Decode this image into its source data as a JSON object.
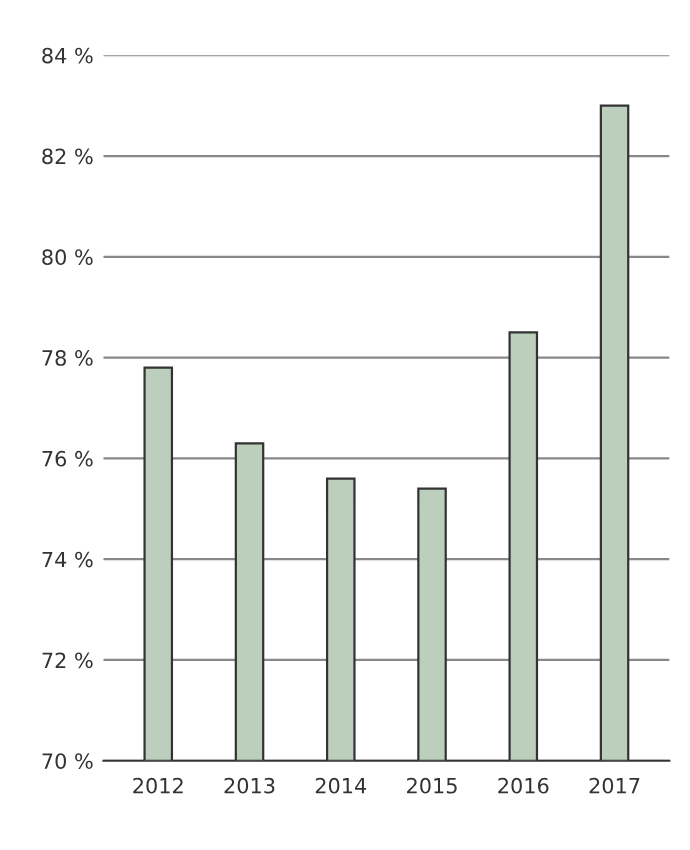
{
  "chart_data": {
    "type": "bar",
    "categories": [
      "2012",
      "2013",
      "2014",
      "2015",
      "2016",
      "2017"
    ],
    "values": [
      77.8,
      76.3,
      75.6,
      75.4,
      78.5,
      83.0
    ],
    "color": "#bccfbc",
    "ylim": [
      70,
      84
    ],
    "yticks": [
      {
        "value": 70,
        "label": "70 %"
      },
      {
        "value": 72,
        "label": "72 %"
      },
      {
        "value": 74,
        "label": "74 %"
      },
      {
        "value": 76,
        "label": "76 %"
      },
      {
        "value": 78,
        "label": "78 %"
      },
      {
        "value": 80,
        "label": "80 %"
      },
      {
        "value": 82,
        "label": "82 %"
      },
      {
        "value": 84,
        "label": "84 %"
      }
    ],
    "grid": "y"
  }
}
